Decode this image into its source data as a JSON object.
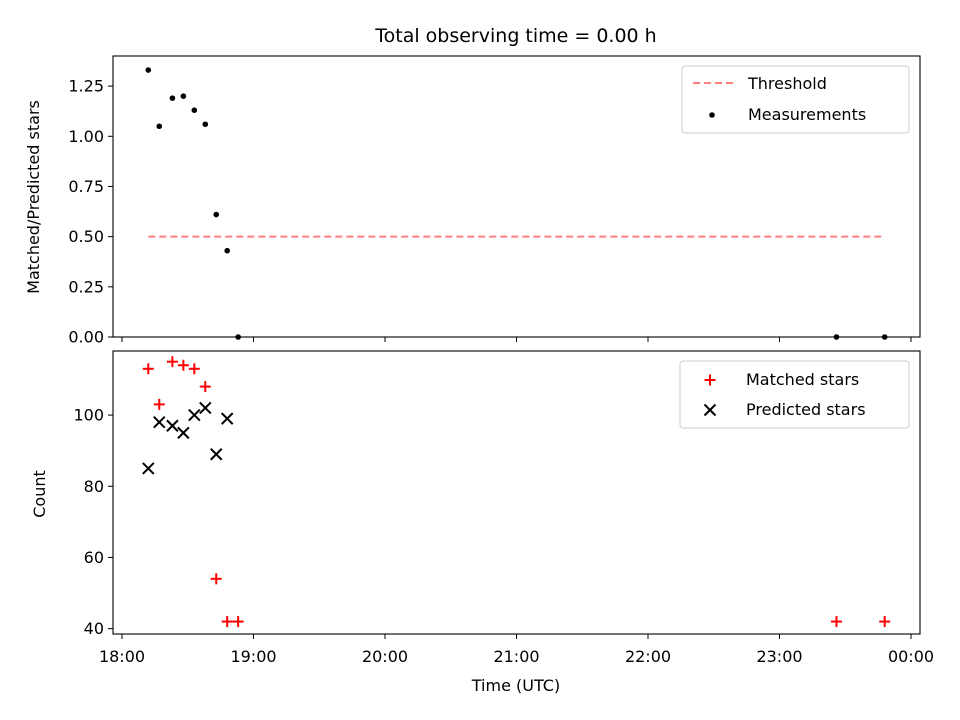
{
  "chart_data": [
    {
      "type": "scatter",
      "title": "Total observing time = 0.00 h",
      "xlabel": "",
      "ylabel": "Matched/Predicted stars",
      "ylim": [
        0,
        1.4
      ],
      "yticks": [
        "0.00",
        "0.25",
        "0.50",
        "0.75",
        "1.00",
        "1.25"
      ],
      "ytick_values": [
        0,
        0.25,
        0.5,
        0.75,
        1.0,
        1.25
      ],
      "legend_position": "top-right",
      "threshold": {
        "name": "Threshold",
        "y": 0.5,
        "x_range": [
          "18:12",
          "23:48"
        ],
        "color": "#ff7f7f"
      },
      "series": [
        {
          "name": "Measurements",
          "color": "#000000",
          "marker": "dot",
          "points": [
            {
              "x": "18:12",
              "y": 1.33
            },
            {
              "x": "18:17",
              "y": 1.05
            },
            {
              "x": "18:23",
              "y": 1.19
            },
            {
              "x": "18:28",
              "y": 1.2
            },
            {
              "x": "18:33",
              "y": 1.13
            },
            {
              "x": "18:38",
              "y": 1.06
            },
            {
              "x": "18:43",
              "y": 0.61
            },
            {
              "x": "18:48",
              "y": 0.43
            },
            {
              "x": "18:53",
              "y": 0.0
            },
            {
              "x": "23:26",
              "y": 0.0
            },
            {
              "x": "23:48",
              "y": 0.0
            }
          ]
        }
      ]
    },
    {
      "type": "scatter",
      "title": "",
      "xlabel": "Time (UTC)",
      "ylabel": "Count",
      "ylim": [
        38.5,
        118
      ],
      "yticks": [
        "40",
        "60",
        "80",
        "100"
      ],
      "ytick_values": [
        40,
        60,
        80,
        100
      ],
      "xlim": [
        "18:00",
        "00:08"
      ],
      "xticks": [
        "18:00",
        "19:00",
        "20:00",
        "21:00",
        "22:00",
        "23:00",
        "00:00"
      ],
      "legend_position": "top-right",
      "series": [
        {
          "name": "Matched stars",
          "color": "#ff0000",
          "marker": "plus",
          "points": [
            {
              "x": "18:12",
              "y": 113
            },
            {
              "x": "18:17",
              "y": 103
            },
            {
              "x": "18:23",
              "y": 115
            },
            {
              "x": "18:28",
              "y": 114
            },
            {
              "x": "18:33",
              "y": 113
            },
            {
              "x": "18:38",
              "y": 108
            },
            {
              "x": "18:43",
              "y": 54
            },
            {
              "x": "18:48",
              "y": 42
            },
            {
              "x": "18:53",
              "y": 42
            },
            {
              "x": "23:26",
              "y": 42
            },
            {
              "x": "23:48",
              "y": 42
            }
          ]
        },
        {
          "name": "Predicted stars",
          "color": "#000000",
          "marker": "x",
          "points": [
            {
              "x": "18:12",
              "y": 85
            },
            {
              "x": "18:17",
              "y": 98
            },
            {
              "x": "18:23",
              "y": 97
            },
            {
              "x": "18:28",
              "y": 95
            },
            {
              "x": "18:33",
              "y": 100
            },
            {
              "x": "18:38",
              "y": 102
            },
            {
              "x": "18:43",
              "y": 89
            },
            {
              "x": "18:48",
              "y": 99
            }
          ]
        }
      ]
    }
  ]
}
